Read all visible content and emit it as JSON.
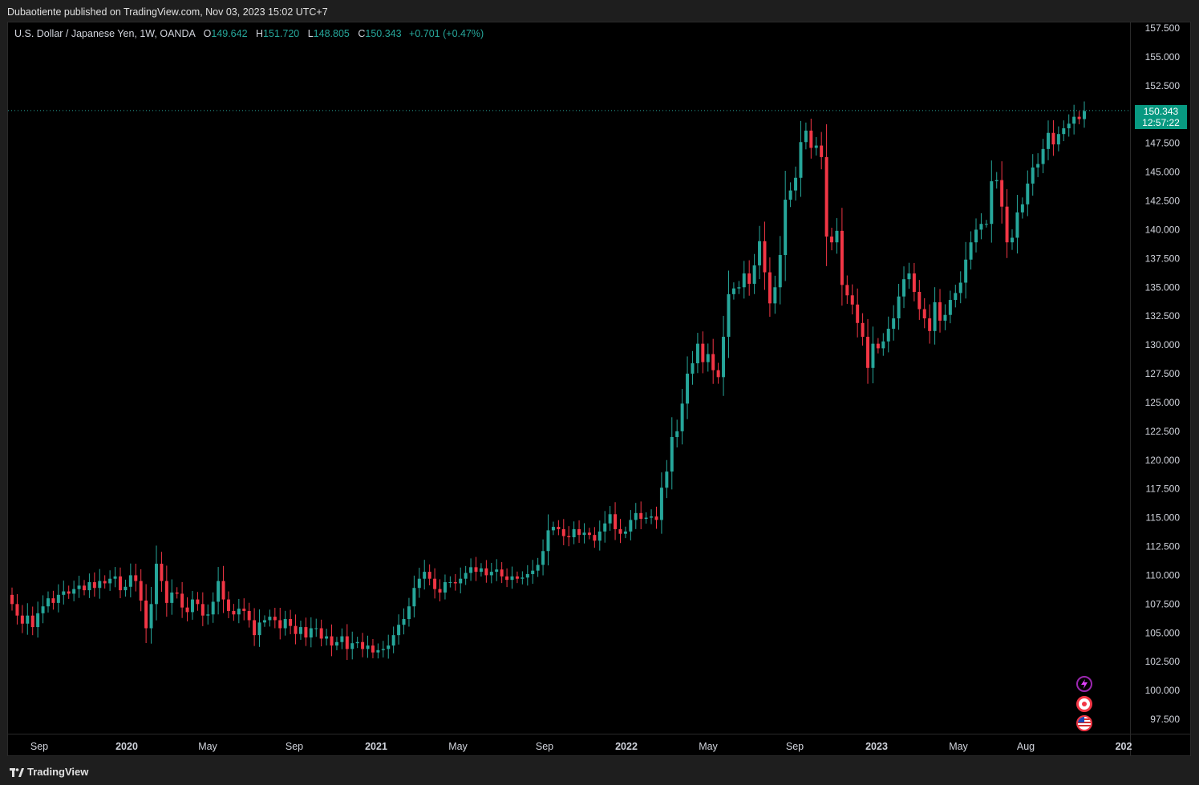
{
  "header": {
    "published": "Dubaotiente published on TradingView.com, Nov 03, 2023 15:02 UTC+7"
  },
  "legend": {
    "symbol": "U.S. Dollar / Japanese Yen, 1W, OANDA",
    "o_label": "O",
    "o_value": "149.642",
    "h_label": "H",
    "h_value": "151.720",
    "l_label": "L",
    "l_value": "148.805",
    "c_label": "C",
    "c_value": "150.343",
    "change": "+0.701 (+0.47%)"
  },
  "price_tag": {
    "price": "150.343",
    "countdown": "12:57:22"
  },
  "footer": {
    "brand": "TradingView"
  },
  "colors": {
    "up": "#26a69a",
    "down": "#f23645",
    "background": "#000000",
    "tag": "#089981"
  },
  "badges": [
    {
      "icon": "lightning-badge-icon"
    },
    {
      "icon": "event-target-badge-icon"
    },
    {
      "icon": "us-flag-badge-icon"
    }
  ],
  "chart_data": {
    "type": "candlestick",
    "title": "U.S. Dollar / Japanese Yen, 1W, OANDA",
    "ylim": [
      95.0,
      158.3
    ],
    "y_ticks": [
      "157.500",
      "155.000",
      "152.500",
      "150.000",
      "147.500",
      "145.000",
      "142.500",
      "140.000",
      "137.500",
      "135.000",
      "132.500",
      "130.000",
      "127.500",
      "125.000",
      "122.500",
      "120.000",
      "117.500",
      "115.000",
      "112.500",
      "110.000",
      "107.500",
      "105.000",
      "102.500",
      "100.000",
      "97.500"
    ],
    "x_ticks": [
      {
        "label": "Sep",
        "bold": false
      },
      {
        "label": "2020",
        "bold": true
      },
      {
        "label": "May",
        "bold": false
      },
      {
        "label": "Sep",
        "bold": false
      },
      {
        "label": "2021",
        "bold": true
      },
      {
        "label": "May",
        "bold": false
      },
      {
        "label": "Sep",
        "bold": false
      },
      {
        "label": "2022",
        "bold": true
      },
      {
        "label": "May",
        "bold": false
      },
      {
        "label": "Sep",
        "bold": false
      },
      {
        "label": "2023",
        "bold": true
      },
      {
        "label": "May",
        "bold": false
      },
      {
        "label": "Aug",
        "bold": false
      },
      {
        "label": "202",
        "bold": true
      }
    ],
    "last_price": 150.343,
    "series": [
      {
        "name": "USD/JPY weekly close (approx.)",
        "closes": [
          107.5,
          106.5,
          105.8,
          106.5,
          105.5,
          106.7,
          107.3,
          108.0,
          107.6,
          108.3,
          108.6,
          108.4,
          108.8,
          109.1,
          108.7,
          109.4,
          108.9,
          109.5,
          109.3,
          109.7,
          109.9,
          108.7,
          109.0,
          110.0,
          109.5,
          107.8,
          105.4,
          107.5,
          111.0,
          109.5,
          107.6,
          108.5,
          108.4,
          107.2,
          106.8,
          107.9,
          107.5,
          106.5,
          106.6,
          107.7,
          109.5,
          107.9,
          106.9,
          106.6,
          107.1,
          106.9,
          106.1,
          104.8,
          105.9,
          106.1,
          106.4,
          106.1,
          105.4,
          106.2,
          105.6,
          104.9,
          105.5,
          104.6,
          105.4,
          105.4,
          104.5,
          104.7,
          103.9,
          104.2,
          104.7,
          103.6,
          104.1,
          104.2,
          103.6,
          103.9,
          103.3,
          103.5,
          103.6,
          103.9,
          104.8,
          105.7,
          106.2,
          107.3,
          108.9,
          109.7,
          110.3,
          109.7,
          108.8,
          108.5,
          109.4,
          109.4,
          109.3,
          109.7,
          110.2,
          110.7,
          110.3,
          110.6,
          110.0,
          110.3,
          110.5,
          109.9,
          109.6,
          109.9,
          109.7,
          109.8,
          110.1,
          110.4,
          110.9,
          112.1,
          113.9,
          114.2,
          114.0,
          113.4,
          113.3,
          114.0,
          113.5,
          113.7,
          113.5,
          113.0,
          113.8,
          114.5,
          115.3,
          114.0,
          113.6,
          113.8,
          114.8,
          115.4,
          114.9,
          115.0,
          115.1,
          114.8,
          117.6,
          119.0,
          122.0,
          122.5,
          124.9,
          127.5,
          128.4,
          130.1,
          128.5,
          129.2,
          127.8,
          127.2,
          130.7,
          134.4,
          134.9,
          135.0,
          136.2,
          135.3,
          136.9,
          139.0,
          136.3,
          133.6,
          135.0,
          137.8,
          142.6,
          143.4,
          144.5,
          147.6,
          148.6,
          147.1,
          147.3,
          146.3,
          139.4,
          138.9,
          139.9,
          135.2,
          134.3,
          133.5,
          131.9,
          130.7,
          128.0,
          130.1,
          129.7,
          130.3,
          131.4,
          132.3,
          134.2,
          135.7,
          136.2,
          134.6,
          133.1,
          132.3,
          131.2,
          133.7,
          132.1,
          132.6,
          133.9,
          134.5,
          135.4,
          137.4,
          138.9,
          140.0,
          140.5,
          140.5,
          144.2,
          144.3,
          142.0,
          138.9,
          139.3,
          141.5,
          142.2,
          144.0,
          145.4,
          145.7,
          147.0,
          148.4,
          147.4,
          148.3,
          148.8,
          149.2,
          149.8,
          149.6,
          150.3
        ]
      }
    ]
  }
}
